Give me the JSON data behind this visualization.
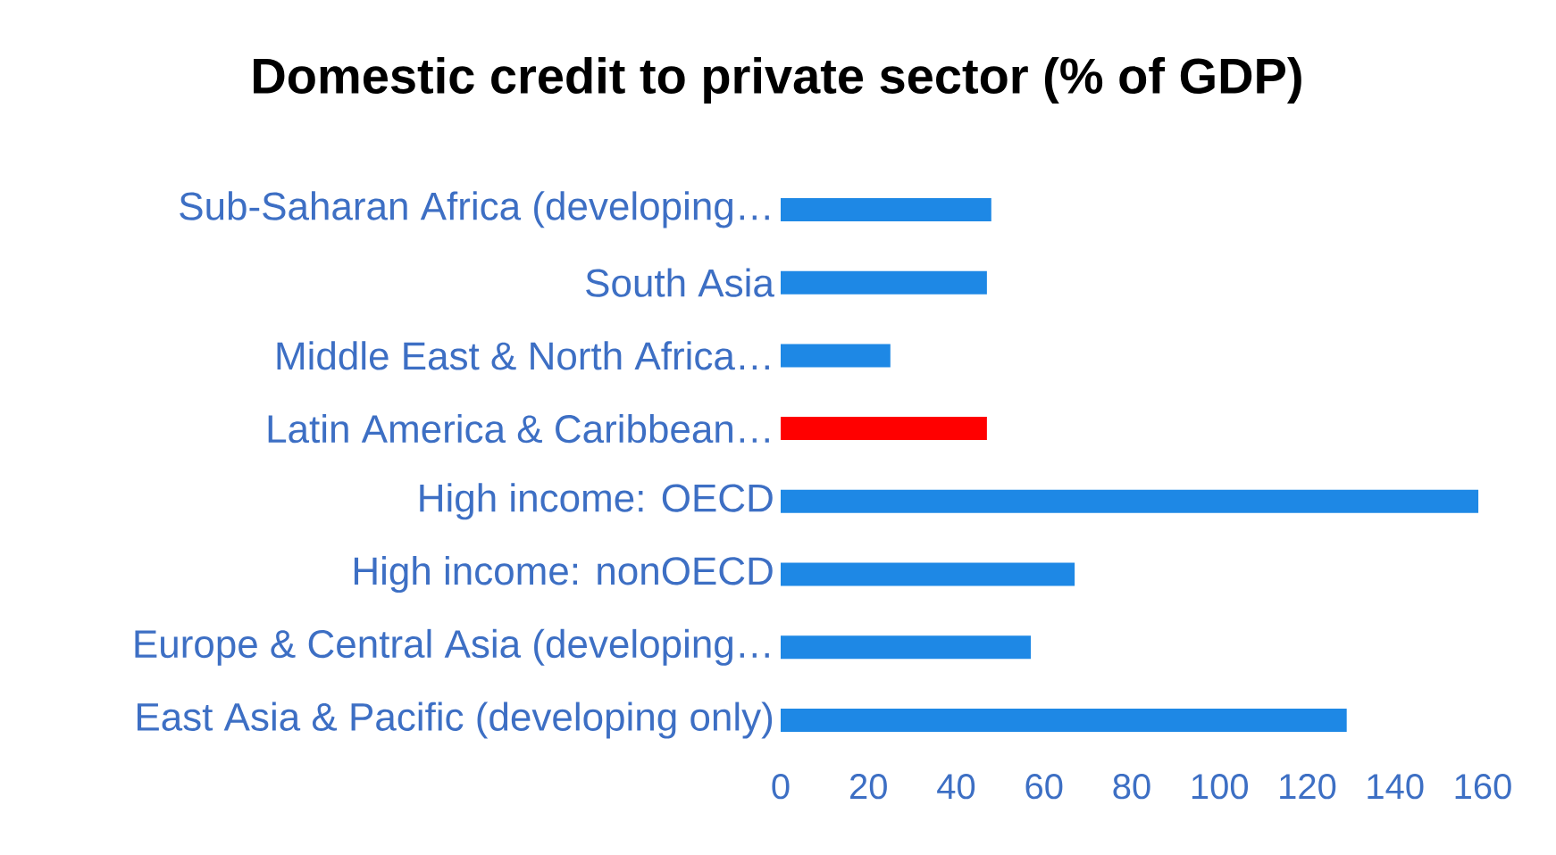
{
  "chart_data": {
    "type": "bar",
    "orientation": "horizontal",
    "title": "Domestic credit to private sector (% of GDP)",
    "categories": [
      "Sub-Saharan Africa (developing…",
      "South Asia",
      "Middle East & North Africa…",
      "Latin America & Caribbean…",
      "High income: OECD",
      "High income: nonOECD",
      "Europe & Central Asia (developing…",
      "East Asia & Pacific (developing only)"
    ],
    "values": [
      48,
      47,
      25,
      47,
      159,
      67,
      57,
      129
    ],
    "colors": [
      "#1e88e5",
      "#1e88e5",
      "#1e88e5",
      "#ff0000",
      "#1e88e5",
      "#1e88e5",
      "#1e88e5",
      "#1e88e5"
    ],
    "xlim": [
      0,
      160
    ],
    "xticks": [
      0,
      20,
      40,
      60,
      80,
      100,
      120,
      140,
      160
    ],
    "grid": false
  }
}
